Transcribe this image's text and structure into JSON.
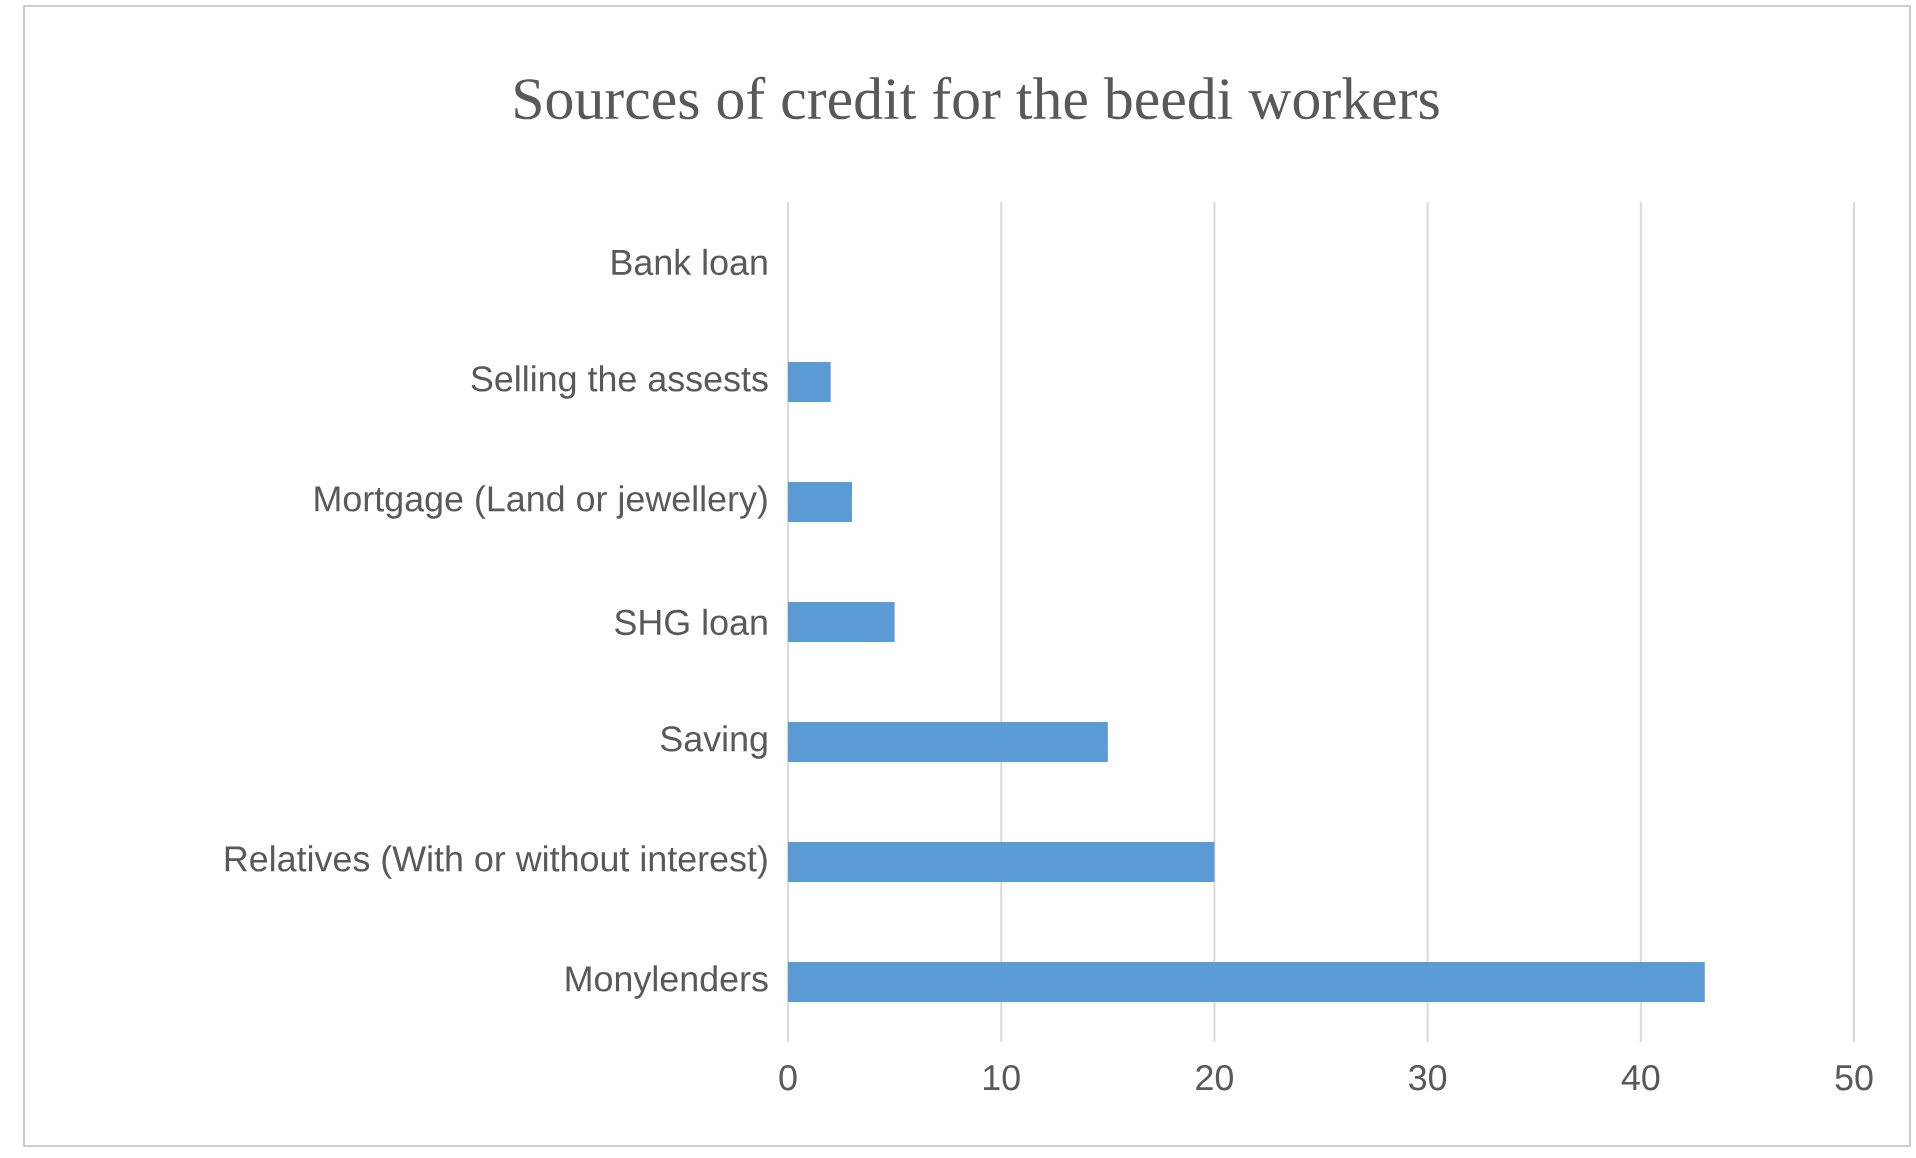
{
  "chart_data": {
    "type": "bar",
    "orientation": "horizontal",
    "title": "Sources of credit for the beedi workers",
    "categories": [
      "Bank loan",
      "Selling the assests",
      "Mortgage (Land or jewellery)",
      "SHG loan",
      "Saving",
      "Relatives (With or without interest)",
      "Monylenders"
    ],
    "values": [
      0,
      2,
      3,
      5,
      15,
      20,
      43
    ],
    "color": "#5b9bd5",
    "xlim": [
      0,
      50
    ],
    "xticks": [
      0,
      10,
      20,
      30,
      40,
      50
    ],
    "grid": "x"
  }
}
